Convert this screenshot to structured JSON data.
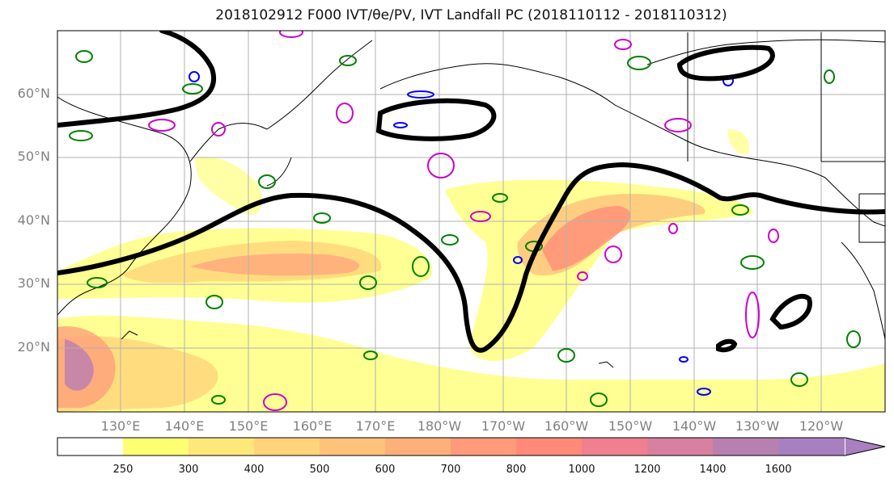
{
  "title": "2018102912 F000 IVT/θe/PV, IVT Landfall PC (2018110112 - 2018110312)",
  "lat_ticks": [
    {
      "label": "60°N",
      "value": 60
    },
    {
      "label": "50°N",
      "value": 50
    },
    {
      "label": "40°N",
      "value": 40
    },
    {
      "label": "30°N",
      "value": 30
    },
    {
      "label": "20°N",
      "value": 20
    }
  ],
  "lon_ticks": [
    {
      "label": "130°E",
      "value": 130
    },
    {
      "label": "140°E",
      "value": 140
    },
    {
      "label": "150°E",
      "value": 150
    },
    {
      "label": "160°E",
      "value": 160
    },
    {
      "label": "170°E",
      "value": 170
    },
    {
      "label": "180°W",
      "value": 180
    },
    {
      "label": "170°W",
      "value": 190
    },
    {
      "label": "160°W",
      "value": 200
    },
    {
      "label": "150°W",
      "value": 210
    },
    {
      "label": "140°W",
      "value": 220
    },
    {
      "label": "130°W",
      "value": 230
    },
    {
      "label": "120°W",
      "value": 240
    }
  ],
  "colorbar": {
    "labels": [
      "250",
      "300",
      "400",
      "500",
      "600",
      "700",
      "800",
      "1000",
      "1200",
      "1400",
      "1600"
    ],
    "colors": [
      "#ffffff",
      "#ffff73",
      "#ffe87a",
      "#ffd47a",
      "#ffc27a",
      "#ffb07a",
      "#ff9a7a",
      "#ff8a7a",
      "#f08090",
      "#d880a0",
      "#b880b0",
      "#a880c0"
    ]
  },
  "colors": {
    "ivt_contour": "#000000",
    "theta_e": "#008000",
    "pv_magenta": "#cc00cc",
    "pv_blue": "#0000ff",
    "coastline": "#000000",
    "grid": "#b0b0b0"
  },
  "chart_data": {
    "type": "heatmap",
    "title": "2018102912 F000 IVT/θe/PV, IVT Landfall PC (2018110112 - 2018110312)",
    "lon_range": [
      120,
      250
    ],
    "lat_range": [
      10,
      70
    ],
    "ivt_bands": [
      {
        "lon": [
          122,
          155
        ],
        "lat": [
          28,
          33
        ],
        "level": 500
      },
      {
        "lon": [
          140,
          180
        ],
        "lat": [
          27,
          38
        ],
        "level": 400
      },
      {
        "lon": [
          196,
          208
        ],
        "lat": [
          30,
          42
        ],
        "level": 800
      },
      {
        "lon": [
          120,
          130
        ],
        "lat": [
          12,
          24
        ],
        "level": 1400
      }
    ],
    "colorbar_levels": [
      250,
      300,
      400,
      500,
      600,
      700,
      800,
      1000,
      1200,
      1400,
      1600
    ]
  }
}
